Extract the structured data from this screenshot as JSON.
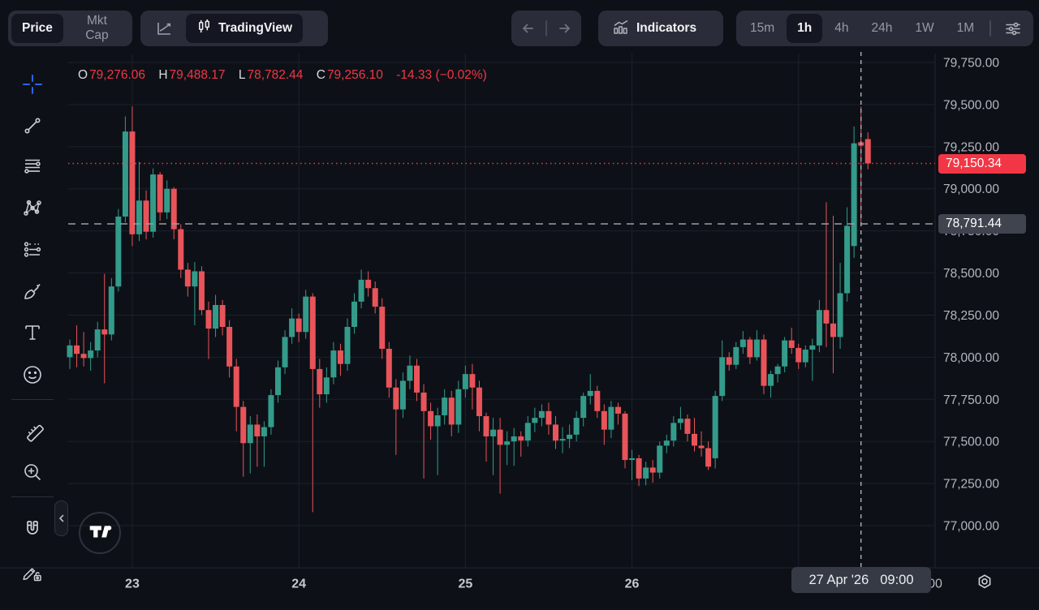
{
  "top_bar": {
    "mode_toggle": {
      "options": [
        "Price",
        "Mkt Cap"
      ],
      "active": "Price"
    },
    "tradingview_label": "TradingView",
    "indicators_label": "Indicators",
    "timeframes": [
      "15m",
      "1h",
      "4h",
      "24h",
      "1W",
      "1M"
    ],
    "active_timeframe": "1h"
  },
  "legend": {
    "open_label": "O",
    "open": "79,276.06",
    "high_label": "H",
    "high": "79,488.17",
    "low_label": "L",
    "low": "78,782.44",
    "close_label": "C",
    "close": "79,256.10",
    "change": "-14.33 (−0.02%)"
  },
  "sidebar": {
    "tools": [
      "crosshair",
      "trend-line",
      "fib-retracement",
      "xabcd-pattern",
      "forecast-lines",
      "brush",
      "text",
      "emoji",
      "ruler",
      "zoom-in",
      "magnet",
      "drawing-lock"
    ]
  },
  "badges": {
    "last_price": "79,150.34",
    "bid_price": "78,791.44",
    "crosshair_date": "27 Apr '26",
    "crosshair_time": "09:00"
  },
  "colors": {
    "up": "#349b8a",
    "down": "#e8545a",
    "last_price_red": "#f23645",
    "gray_badge": "#40444f",
    "time_badge_bg": "#363a45",
    "accent_blue": "#2c63ff",
    "grid": "#1c202b",
    "axis_text": "#b4b7c0",
    "crosshair": "#a6a9b2"
  },
  "chart_data": {
    "type": "candlestick",
    "interval": "1h",
    "y_axis": {
      "min": 77000,
      "max": 79750,
      "tick_step": 250,
      "tick_values": [
        79750,
        79500,
        79250,
        79000,
        78750,
        78500,
        78250,
        78000,
        77750,
        77500,
        77250,
        77000
      ],
      "tick_labels": [
        "79,750.00",
        "79,500.00",
        "79,250.00",
        "79,000.00",
        "78,750.00",
        "78,500.00",
        "78,250.00",
        "78,000.00",
        "77,750.00",
        "77,500.00",
        "77,250.00",
        "77,000.00"
      ]
    },
    "x_axis": {
      "day_tick_labels": [
        "23",
        "24",
        "25",
        "26"
      ],
      "day_tick_indices": [
        9,
        33,
        57,
        81
      ],
      "extra_grid_indices": [
        105
      ],
      "partial_label": "00"
    },
    "lines": {
      "last_price": {
        "value": 79150.34,
        "label": "79,150.34",
        "style": "dotted-red"
      },
      "reference": {
        "value": 78791.44,
        "label": "78,791.44",
        "style": "dashed-gray"
      }
    },
    "crosshair": {
      "index": 114,
      "date": "27 Apr '26",
      "time": "09:00",
      "ohlc": [
        79276.06,
        79488.17,
        78782.44,
        79256.1
      ]
    },
    "candles": [
      [
        78000,
        78105,
        77930,
        78070
      ],
      [
        78070,
        78190,
        77940,
        78020
      ],
      [
        78020,
        78150,
        77945,
        77995
      ],
      [
        77995,
        78090,
        77920,
        78040
      ],
      [
        78040,
        78210,
        78000,
        78165
      ],
      [
        78165,
        78495,
        77845,
        78135
      ],
      [
        78135,
        78470,
        78100,
        78420
      ],
      [
        78420,
        78880,
        78390,
        78835
      ],
      [
        78835,
        79430,
        78800,
        79340
      ],
      [
        79340,
        79490,
        78660,
        78730
      ],
      [
        78730,
        79160,
        78690,
        78930
      ],
      [
        78930,
        78990,
        78700,
        78745
      ],
      [
        78745,
        79120,
        78710,
        79085
      ],
      [
        79085,
        79100,
        78810,
        78860
      ],
      [
        78860,
        79050,
        78820,
        79000
      ],
      [
        79000,
        79010,
        78700,
        78760
      ],
      [
        78760,
        78790,
        78470,
        78520
      ],
      [
        78520,
        78560,
        78360,
        78420
      ],
      [
        78420,
        78565,
        78190,
        78510
      ],
      [
        78510,
        78540,
        78250,
        78280
      ],
      [
        78280,
        78330,
        77990,
        78170
      ],
      [
        78170,
        78370,
        78120,
        78310
      ],
      [
        78310,
        78340,
        78130,
        78180
      ],
      [
        78180,
        78220,
        77880,
        77945
      ],
      [
        77945,
        77990,
        77560,
        77705
      ],
      [
        77705,
        77740,
        77290,
        77490
      ],
      [
        77490,
        77650,
        77310,
        77600
      ],
      [
        77600,
        77660,
        77350,
        77530
      ],
      [
        77530,
        77620,
        77350,
        77585
      ],
      [
        77585,
        77810,
        77540,
        77775
      ],
      [
        77775,
        77980,
        77730,
        77940
      ],
      [
        77940,
        78160,
        77900,
        78120
      ],
      [
        78120,
        78290,
        78080,
        78230
      ],
      [
        78230,
        78260,
        78090,
        78150
      ],
      [
        78150,
        78400,
        78110,
        78360
      ],
      [
        78360,
        78380,
        77080,
        77930
      ],
      [
        77930,
        77990,
        77700,
        77780
      ],
      [
        77780,
        77940,
        77730,
        77880
      ],
      [
        77880,
        78090,
        77840,
        78040
      ],
      [
        78040,
        78080,
        77890,
        77960
      ],
      [
        77960,
        78230,
        77920,
        78180
      ],
      [
        78180,
        78380,
        78140,
        78330
      ],
      [
        78330,
        78520,
        78290,
        78460
      ],
      [
        78460,
        78510,
        78360,
        78410
      ],
      [
        78410,
        78450,
        78260,
        78300
      ],
      [
        78300,
        78350,
        77990,
        78050
      ],
      [
        78050,
        78090,
        77760,
        77820
      ],
      [
        77820,
        77870,
        77420,
        77690
      ],
      [
        77690,
        77910,
        77640,
        77860
      ],
      [
        77860,
        78010,
        77810,
        77950
      ],
      [
        77950,
        77990,
        77740,
        77790
      ],
      [
        77790,
        77840,
        77280,
        77680
      ],
      [
        77680,
        77730,
        77510,
        77590
      ],
      [
        77590,
        77700,
        77300,
        77655
      ],
      [
        77655,
        77810,
        77600,
        77760
      ],
      [
        77760,
        77800,
        77530,
        77600
      ],
      [
        77600,
        77860,
        77550,
        77810
      ],
      [
        77810,
        77950,
        77760,
        77900
      ],
      [
        77900,
        77960,
        77690,
        77820
      ],
      [
        77820,
        77860,
        77560,
        77650
      ],
      [
        77650,
        77670,
        77380,
        77530
      ],
      [
        77530,
        77640,
        77300,
        77570
      ],
      [
        77570,
        77640,
        77190,
        77480
      ],
      [
        77480,
        77560,
        77360,
        77500
      ],
      [
        77500,
        77580,
        77355,
        77530
      ],
      [
        77530,
        77560,
        77410,
        77505
      ],
      [
        77505,
        77650,
        77470,
        77610
      ],
      [
        77610,
        77700,
        77555,
        77640
      ],
      [
        77640,
        77720,
        77590,
        77680
      ],
      [
        77680,
        77730,
        77540,
        77600
      ],
      [
        77600,
        77650,
        77455,
        77505
      ],
      [
        77505,
        77585,
        77430,
        77515
      ],
      [
        77515,
        77600,
        77460,
        77540
      ],
      [
        77540,
        77680,
        77500,
        77640
      ],
      [
        77640,
        77790,
        77590,
        77770
      ],
      [
        77770,
        77900,
        77720,
        77800
      ],
      [
        77800,
        77830,
        77640,
        77680
      ],
      [
        77680,
        77720,
        77480,
        77570
      ],
      [
        77570,
        77740,
        77520,
        77705
      ],
      [
        77705,
        77730,
        77600,
        77665
      ],
      [
        77665,
        77680,
        77340,
        77390
      ],
      [
        77390,
        77450,
        77270,
        77400
      ],
      [
        77400,
        77420,
        77235,
        77280
      ],
      [
        77280,
        77380,
        77240,
        77345
      ],
      [
        77345,
        77390,
        77255,
        77315
      ],
      [
        77315,
        77500,
        77280,
        77475
      ],
      [
        77475,
        77540,
        77430,
        77505
      ],
      [
        77505,
        77650,
        77470,
        77610
      ],
      [
        77610,
        77705,
        77570,
        77635
      ],
      [
        77635,
        77660,
        77500,
        77545
      ],
      [
        77545,
        77640,
        77440,
        77475
      ],
      [
        77475,
        77560,
        77410,
        77460
      ],
      [
        77460,
        77500,
        77330,
        77350
      ],
      [
        77400,
        77800,
        77340,
        77770
      ],
      [
        77770,
        78100,
        77740,
        78000
      ],
      [
        78000,
        78030,
        77920,
        77955
      ],
      [
        77955,
        78090,
        77930,
        78060
      ],
      [
        78060,
        78155,
        78020,
        78105
      ],
      [
        78105,
        78120,
        77960,
        78000
      ],
      [
        78000,
        78160,
        77980,
        78105
      ],
      [
        78105,
        78135,
        77780,
        77830
      ],
      [
        77830,
        77920,
        77760,
        77900
      ],
      [
        77900,
        77960,
        77850,
        77945
      ],
      [
        77945,
        78120,
        77910,
        78100
      ],
      [
        78100,
        78175,
        78020,
        78055
      ],
      [
        78055,
        78080,
        77930,
        77970
      ],
      [
        77970,
        78070,
        77940,
        78045
      ],
      [
        78045,
        78110,
        77860,
        78070
      ],
      [
        78070,
        78340,
        78030,
        78280
      ],
      [
        78280,
        78920,
        78060,
        78200
      ],
      [
        78200,
        78840,
        77905,
        78120
      ],
      [
        78120,
        78560,
        78050,
        78380
      ],
      [
        78380,
        78890,
        78330,
        78780
      ],
      [
        78660,
        79370,
        78590,
        79270
      ],
      [
        79276.06,
        79488.17,
        78782.44,
        79256.1
      ],
      [
        79295,
        79335,
        79115,
        79150.34
      ]
    ]
  }
}
